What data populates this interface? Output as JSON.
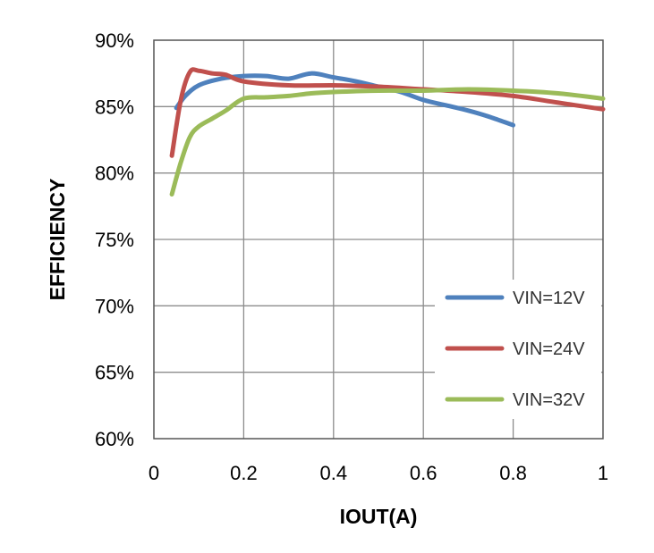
{
  "chart_data": {
    "type": "line",
    "title": "",
    "xlabel": "IOUT(A)",
    "ylabel": "EFFICIENCY",
    "xlim": [
      0,
      1
    ],
    "ylim": [
      60,
      90
    ],
    "grid": true,
    "legend_position": "right-middle",
    "x_ticks": [
      "0",
      "0.2",
      "0.4",
      "0.6",
      "0.8",
      "1"
    ],
    "y_ticks": [
      "60%",
      "65%",
      "70%",
      "75%",
      "80%",
      "85%",
      "90%"
    ],
    "series": [
      {
        "name": "VIN=12V",
        "color": "#4f81bd",
        "x": [
          0.05,
          0.07,
          0.1,
          0.15,
          0.2,
          0.25,
          0.3,
          0.35,
          0.4,
          0.45,
          0.5,
          0.55,
          0.6,
          0.65,
          0.7,
          0.75,
          0.8
        ],
        "y": [
          84.9,
          85.8,
          86.6,
          87.1,
          87.3,
          87.3,
          87.1,
          87.5,
          87.2,
          86.9,
          86.5,
          86.1,
          85.5,
          85.1,
          84.7,
          84.2,
          83.6
        ]
      },
      {
        "name": "VIN=24V",
        "color": "#c0504d",
        "x": [
          0.04,
          0.06,
          0.08,
          0.1,
          0.13,
          0.16,
          0.2,
          0.3,
          0.4,
          0.5,
          0.6,
          0.7,
          0.8,
          0.9,
          1.0
        ],
        "y": [
          81.3,
          85.5,
          87.6,
          87.7,
          87.5,
          87.4,
          86.9,
          86.6,
          86.6,
          86.5,
          86.3,
          86.1,
          85.8,
          85.3,
          84.8
        ]
      },
      {
        "name": "VIN=32V",
        "color": "#9bbb59",
        "x": [
          0.04,
          0.06,
          0.08,
          0.1,
          0.13,
          0.16,
          0.2,
          0.25,
          0.3,
          0.35,
          0.4,
          0.5,
          0.6,
          0.7,
          0.8,
          0.9,
          1.0
        ],
        "y": [
          78.4,
          80.8,
          82.7,
          83.5,
          84.1,
          84.7,
          85.6,
          85.7,
          85.8,
          86.0,
          86.1,
          86.2,
          86.2,
          86.3,
          86.2,
          86.0,
          85.6
        ]
      }
    ]
  }
}
